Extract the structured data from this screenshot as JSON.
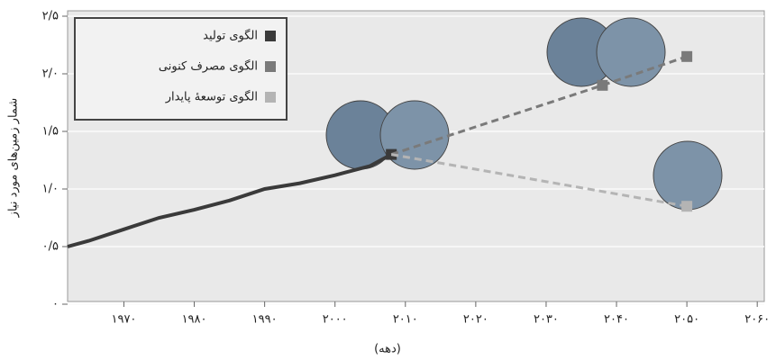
{
  "chart_data": {
    "type": "line",
    "y_label": "شمار زمین‌های مورد نیاز",
    "x_label": "(دهه)",
    "xlim": [
      1962,
      2061
    ],
    "ylim": [
      0,
      2.5
    ],
    "xticks": [
      {
        "value": 1970,
        "label": "۱۹۷۰"
      },
      {
        "value": 1980,
        "label": "۱۹۸۰"
      },
      {
        "value": 1990,
        "label": "۱۹۹۰"
      },
      {
        "value": 2000,
        "label": "۲۰۰۰"
      },
      {
        "value": 2010,
        "label": "۲۰۱۰"
      },
      {
        "value": 2020,
        "label": "۲۰۲۰"
      },
      {
        "value": 2030,
        "label": "۲۰۳۰"
      },
      {
        "value": 2040,
        "label": "۲۰۴۰"
      },
      {
        "value": 2050,
        "label": "۲۰۵۰"
      },
      {
        "value": 2060,
        "label": "۲۰۶۰"
      }
    ],
    "yticks": [
      {
        "value": 0,
        "label": "۰"
      },
      {
        "value": 0.5,
        "label": "۰/۵"
      },
      {
        "value": 1.0,
        "label": "۱/۰"
      },
      {
        "value": 1.5,
        "label": "۱/۵"
      },
      {
        "value": 2.0,
        "label": "۲/۰"
      },
      {
        "value": 2.5,
        "label": "۲/۵"
      }
    ],
    "grid": true,
    "legend": "upper left",
    "series": [
      {
        "name": "الگوی تولید",
        "color": "#3a3a3a",
        "line_style": "solid",
        "x": [
          1962,
          1965,
          1970,
          1975,
          1980,
          1985,
          1990,
          1995,
          2000,
          2005,
          2008
        ],
        "values": [
          0.5,
          0.55,
          0.65,
          0.75,
          0.82,
          0.9,
          1.0,
          1.05,
          1.12,
          1.2,
          1.3
        ]
      },
      {
        "name": "الگوی مصرف کنونی",
        "color": "#7a7a7a",
        "line_style": "dashed",
        "x": [
          2008,
          2038,
          2050
        ],
        "values": [
          1.3,
          1.9,
          2.15
        ]
      },
      {
        "name": "الگوی توسعهٔ پایدار",
        "color": "#b4b4b4",
        "line_style": "dashed",
        "x": [
          2008,
          2050
        ],
        "values": [
          1.3,
          0.85
        ]
      }
    ]
  }
}
